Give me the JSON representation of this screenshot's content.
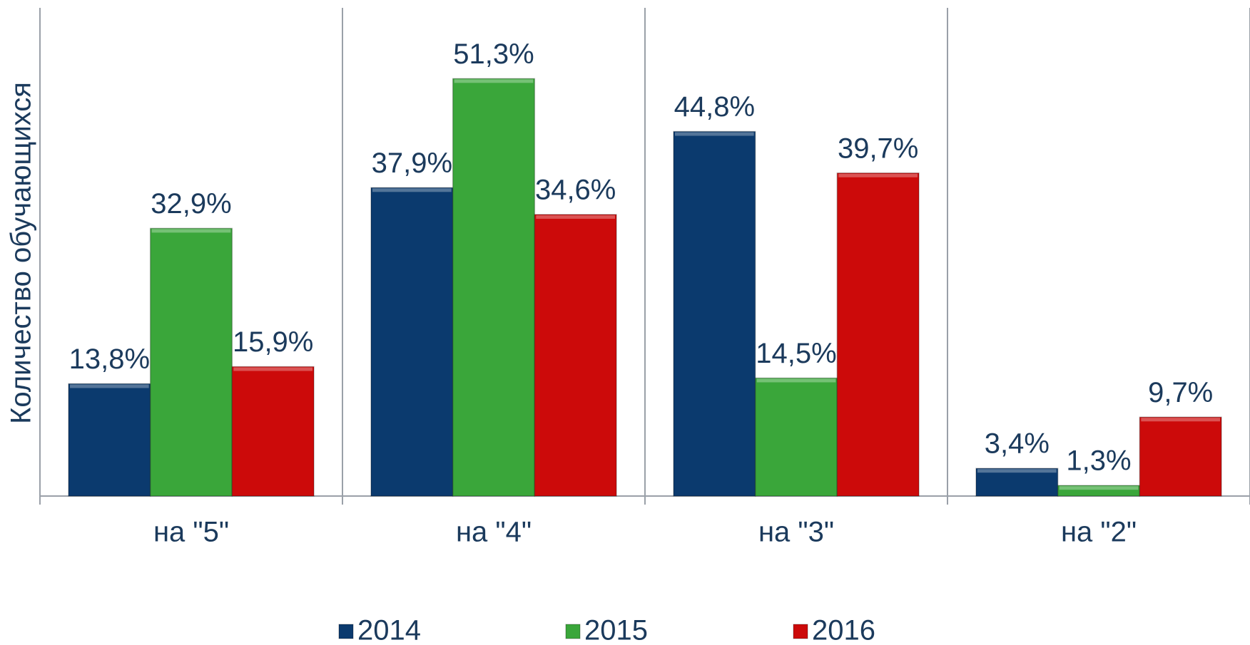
{
  "chart_data": {
    "type": "bar",
    "ylabel": "Количество обучающихся",
    "categories": [
      "на \"5\"",
      "на \"4\"",
      "на \"3\"",
      "на \"2\""
    ],
    "series": [
      {
        "name": "2014",
        "color": "#0b3a6e",
        "values": [
          13.8,
          37.9,
          44.8,
          3.4
        ],
        "value_labels": [
          "13,8%",
          "37,9%",
          "44,8%",
          "3,4%"
        ]
      },
      {
        "name": "2015",
        "color": "#3aa63a",
        "values": [
          32.9,
          51.3,
          14.5,
          1.3
        ],
        "value_labels": [
          "32,9%",
          "51,3%",
          "14,5%",
          "1,3%"
        ]
      },
      {
        "name": "2016",
        "color": "#cc0a0a",
        "values": [
          15.9,
          34.6,
          39.7,
          9.7
        ],
        "value_labels": [
          "15,9%",
          "34,6%",
          "39,7%",
          "9,7%"
        ]
      }
    ],
    "ylim": [
      0,
      60
    ],
    "legend": "bottom"
  }
}
